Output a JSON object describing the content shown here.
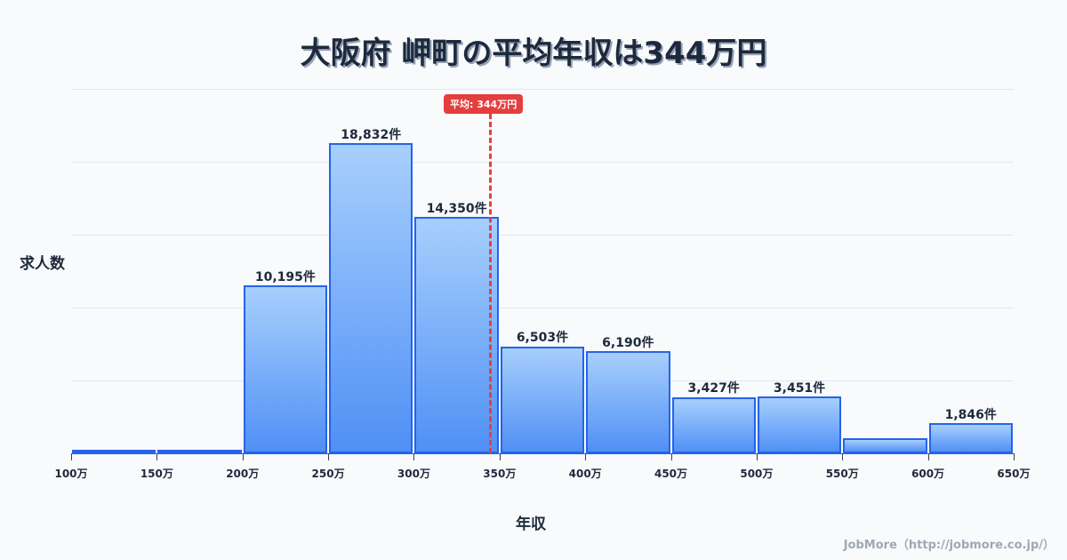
{
  "title": "大阪府 岬町の平均年収は344万円",
  "average_badge": "平均: 344万円",
  "y_axis_label": "求人数",
  "x_axis_label": "年収",
  "credit": "JobMore（http://jobmore.co.jp/）",
  "colors": {
    "bar_border": "#2563eb",
    "bar_top": "#a7cffc",
    "bar_bottom": "#5090f5",
    "average_line": "#e53e3e",
    "text": "#1e293b",
    "background": "#f8fafc"
  },
  "ticks": [
    "100万",
    "150万",
    "200万",
    "250万",
    "300万",
    "350万",
    "400万",
    "450万",
    "500万",
    "550万",
    "600万",
    "650万"
  ],
  "bars": [
    {
      "range": "100-150万",
      "value": 60,
      "label": ""
    },
    {
      "range": "150-200万",
      "value": 160,
      "label": ""
    },
    {
      "range": "200-250万",
      "value": 10195,
      "label": "10,195件"
    },
    {
      "range": "250-300万",
      "value": 18832,
      "label": "18,832件"
    },
    {
      "range": "300-350万",
      "value": 14350,
      "label": "14,350件"
    },
    {
      "range": "350-400万",
      "value": 6503,
      "label": "6,503件"
    },
    {
      "range": "400-450万",
      "value": 6190,
      "label": "6,190件"
    },
    {
      "range": "450-500万",
      "value": 3427,
      "label": "3,427件"
    },
    {
      "range": "500-550万",
      "value": 3451,
      "label": "3,451件"
    },
    {
      "range": "550-600万",
      "value": 900,
      "label": ""
    },
    {
      "range": "600-650万",
      "value": 1846,
      "label": "1,846件"
    }
  ],
  "chart_data": {
    "type": "bar",
    "title": "大阪府 岬町の平均年収は344万円",
    "xlabel": "年収",
    "ylabel": "求人数",
    "categories": [
      "100-150万",
      "150-200万",
      "200-250万",
      "250-300万",
      "300-350万",
      "350-400万",
      "400-450万",
      "450-500万",
      "500-550万",
      "550-600万",
      "600-650万"
    ],
    "values": [
      60,
      160,
      10195,
      18832,
      14350,
      6503,
      6190,
      3427,
      3451,
      900,
      1846
    ],
    "x_ticks": [
      "100万",
      "150万",
      "200万",
      "250万",
      "300万",
      "350万",
      "400万",
      "450万",
      "500万",
      "550万",
      "600万",
      "650万"
    ],
    "ylim": [
      0,
      22125
    ],
    "grid": true,
    "annotations": [
      {
        "type": "vline",
        "x": 344,
        "label": "平均: 344万円",
        "color": "#e53e3e",
        "style": "dashed"
      }
    ],
    "legend": null
  }
}
